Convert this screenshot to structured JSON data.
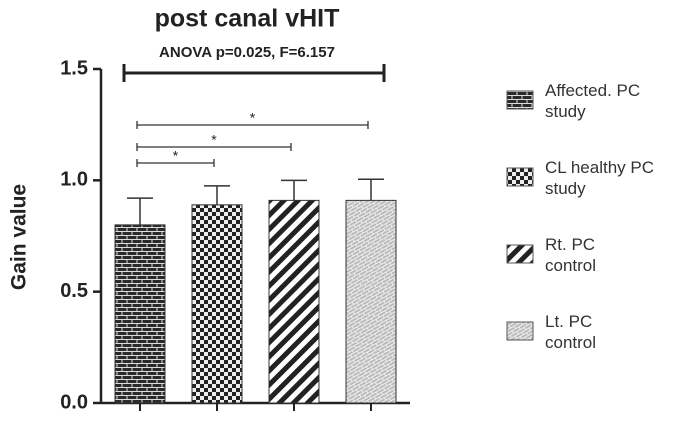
{
  "chart_data": {
    "type": "bar",
    "title": "post canal vHIT",
    "y_label": "Gain value",
    "categories": [
      "Affected. PC\n study",
      "CL healthy PC\n study",
      "Rt. PC\n control",
      "Lt. PC\n control"
    ],
    "values": [
      0.8,
      0.89,
      0.91,
      0.91
    ],
    "errors": [
      0.12,
      0.085,
      0.09,
      0.095
    ],
    "patterns": [
      "brick",
      "checker",
      "stripes",
      "light-brick"
    ],
    "ylim": [
      0,
      1.5
    ],
    "yticks": [
      {
        "value": 0,
        "label": "0.0"
      },
      {
        "value": 0.5,
        "label": "0.5"
      },
      {
        "value": 1,
        "label": "1.0"
      },
      {
        "value": 1.5,
        "label": "1.5"
      }
    ],
    "annotations": [
      "ANOVA p=0.025, F=6.157",
      "*",
      "*",
      "*"
    ]
  }
}
